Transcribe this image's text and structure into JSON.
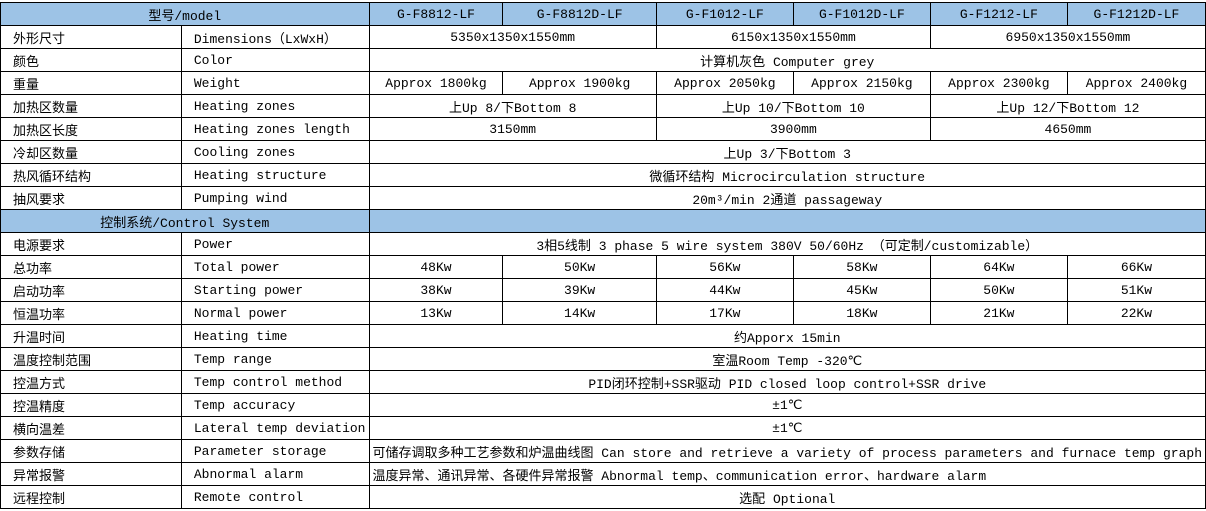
{
  "table": {
    "header": {
      "label": "型号/model",
      "models": [
        "G-F8812-LF",
        "G-F8812D-LF",
        "G-F1012-LF",
        "G-F1012D-LF",
        "G-F1212-LF",
        "G-F1212D-LF"
      ]
    },
    "rows": [
      {
        "zh": "外形尺寸",
        "en": "Dimensions（LxWxH）",
        "cells": [
          "5350x1350x1550mm",
          "6150x1350x1550mm",
          "6950x1350x1550mm"
        ]
      },
      {
        "zh": "颜色",
        "en": "Color",
        "cells": [
          "计算机灰色 Computer grey"
        ]
      },
      {
        "zh": "重量",
        "en": "Weight",
        "cells": [
          "Approx 1800kg",
          "Approx 1900kg",
          "Approx 2050kg",
          "Approx 2150kg",
          "Approx 2300kg",
          "Approx 2400kg"
        ]
      },
      {
        "zh": "加热区数量",
        "en": "Heating zones",
        "cells": [
          "上Up 8/下Bottom 8",
          "上Up 10/下Bottom 10",
          "上Up 12/下Bottom 12"
        ]
      },
      {
        "zh": "加热区长度",
        "en": "Heating zones length",
        "cells": [
          "3150mm",
          "3900mm",
          "4650mm"
        ]
      },
      {
        "zh": "冷却区数量",
        "en": "Cooling zones",
        "cells": [
          "上Up 3/下Bottom 3"
        ]
      },
      {
        "zh": "热风循环结构",
        "en": "Heating structure",
        "cells": [
          "微循环结构 Microcirculation structure"
        ]
      },
      {
        "zh": "抽风要求",
        "en": "Pumping wind",
        "cells": [
          "20m³/min 2通道 passageway"
        ]
      },
      {
        "section": "控制系统/Control System"
      },
      {
        "zh": "电源要求",
        "en": "Power",
        "cells": [
          "3相5线制 3 phase 5 wire system  380V 50/60Hz （可定制/customizable）"
        ]
      },
      {
        "zh": "总功率",
        "en": "Total power",
        "cells": [
          "48Kw",
          "50Kw",
          "56Kw",
          "58Kw",
          "64Kw",
          "66Kw"
        ]
      },
      {
        "zh": "启动功率",
        "en": "Starting power",
        "cells": [
          "38Kw",
          "39Kw",
          "44Kw",
          "45Kw",
          "50Kw",
          "51Kw"
        ]
      },
      {
        "zh": "恒温功率",
        "en": "Normal power",
        "cells": [
          "13Kw",
          "14Kw",
          "17Kw",
          "18Kw",
          "21Kw",
          "22Kw"
        ]
      },
      {
        "zh": "升温时间",
        "en": "Heating time",
        "cells": [
          "约Apporx 15min"
        ]
      },
      {
        "zh": "温度控制范围",
        "en": "Temp range",
        "cells": [
          "室温Room Temp -320℃"
        ]
      },
      {
        "zh": "控温方式",
        "en": "Temp control method",
        "cells": [
          "PID闭环控制+SSR驱动 PID closed loop control+SSR drive"
        ]
      },
      {
        "zh": "控温精度",
        "en": "Temp accuracy",
        "cells": [
          "±1℃"
        ]
      },
      {
        "zh": "横向温差",
        "en": "Lateral temp deviation",
        "cells": [
          "±1℃"
        ]
      },
      {
        "zh": "参数存储",
        "en": "Parameter storage",
        "cells": [
          "可储存调取多种工艺参数和炉温曲线图 Can store and retrieve a variety of process parameters and furnace temp graph"
        ]
      },
      {
        "zh": "异常报警",
        "en": "Abnormal alarm",
        "cells": [
          "温度异常、通讯异常、各硬件异常报警 Abnormal temp、communication error、hardware alarm"
        ]
      },
      {
        "zh": "远程控制",
        "en": "Remote control",
        "cells": [
          "选配 Optional"
        ]
      }
    ]
  }
}
